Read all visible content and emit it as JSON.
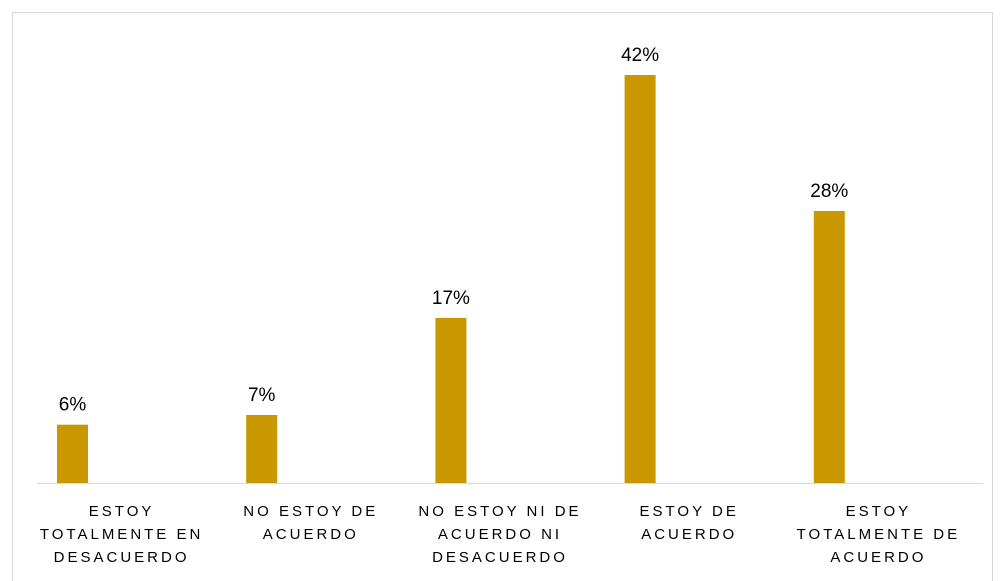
{
  "chart_data": {
    "type": "bar",
    "categories": [
      "ESTOY TOTALMENTE EN DESACUERDO",
      "NO ESTOY DE ACUERDO",
      "NO ESTOY NI DE ACUERDO NI DESACUERDO",
      "ESTOY DE ACUERDO",
      "ESTOY TOTALMENTE DE ACUERDO"
    ],
    "category_label_lines": [
      [
        "ESTOY",
        "TOTALMENTE EN",
        "DESACUERDO"
      ],
      [
        "NO ESTOY DE",
        "ACUERDO"
      ],
      [
        "NO ESTOY NI DE",
        "ACUERDO NI",
        "DESACUERDO"
      ],
      [
        "ESTOY DE",
        "ACUERDO"
      ],
      [
        "ESTOY",
        "TOTALMENTE DE",
        "ACUERDO"
      ]
    ],
    "values": [
      6,
      7,
      17,
      42,
      28
    ],
    "data_labels": [
      "6%",
      "7%",
      "17%",
      "42%",
      "28%"
    ],
    "unit": "%",
    "ylim": [
      0,
      45
    ],
    "grid": false,
    "legend": "none",
    "bar_color": "#C99700"
  }
}
